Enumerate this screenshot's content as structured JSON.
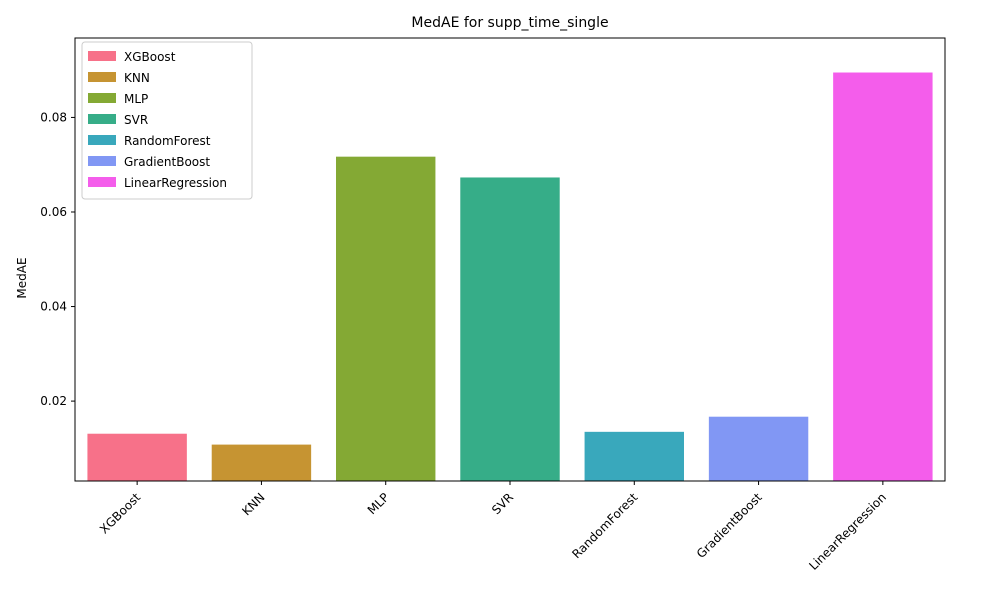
{
  "chart_data": {
    "type": "bar",
    "title": "MedAE for supp_time_single",
    "xlabel": "",
    "ylabel": "MedAE",
    "categories": [
      "XGBoost",
      "KNN",
      "MLP",
      "SVR",
      "RandomForest",
      "GradientBoost",
      "LinearRegression"
    ],
    "values": [
      0.0131,
      0.0108,
      0.0717,
      0.0673,
      0.0135,
      0.0167,
      0.0895
    ],
    "colors": [
      "#f77189",
      "#c69432",
      "#84a934",
      "#36ad88",
      "#39a8bc",
      "#8197f4",
      "#f45deb"
    ],
    "ylim": [
      0.0031,
      0.0968
    ],
    "yticks": [
      0.02,
      0.04,
      0.06,
      0.08
    ],
    "ytick_labels": [
      "0.02",
      "0.04",
      "0.06",
      "0.08"
    ],
    "grid": false,
    "legend_position": "top-left"
  }
}
